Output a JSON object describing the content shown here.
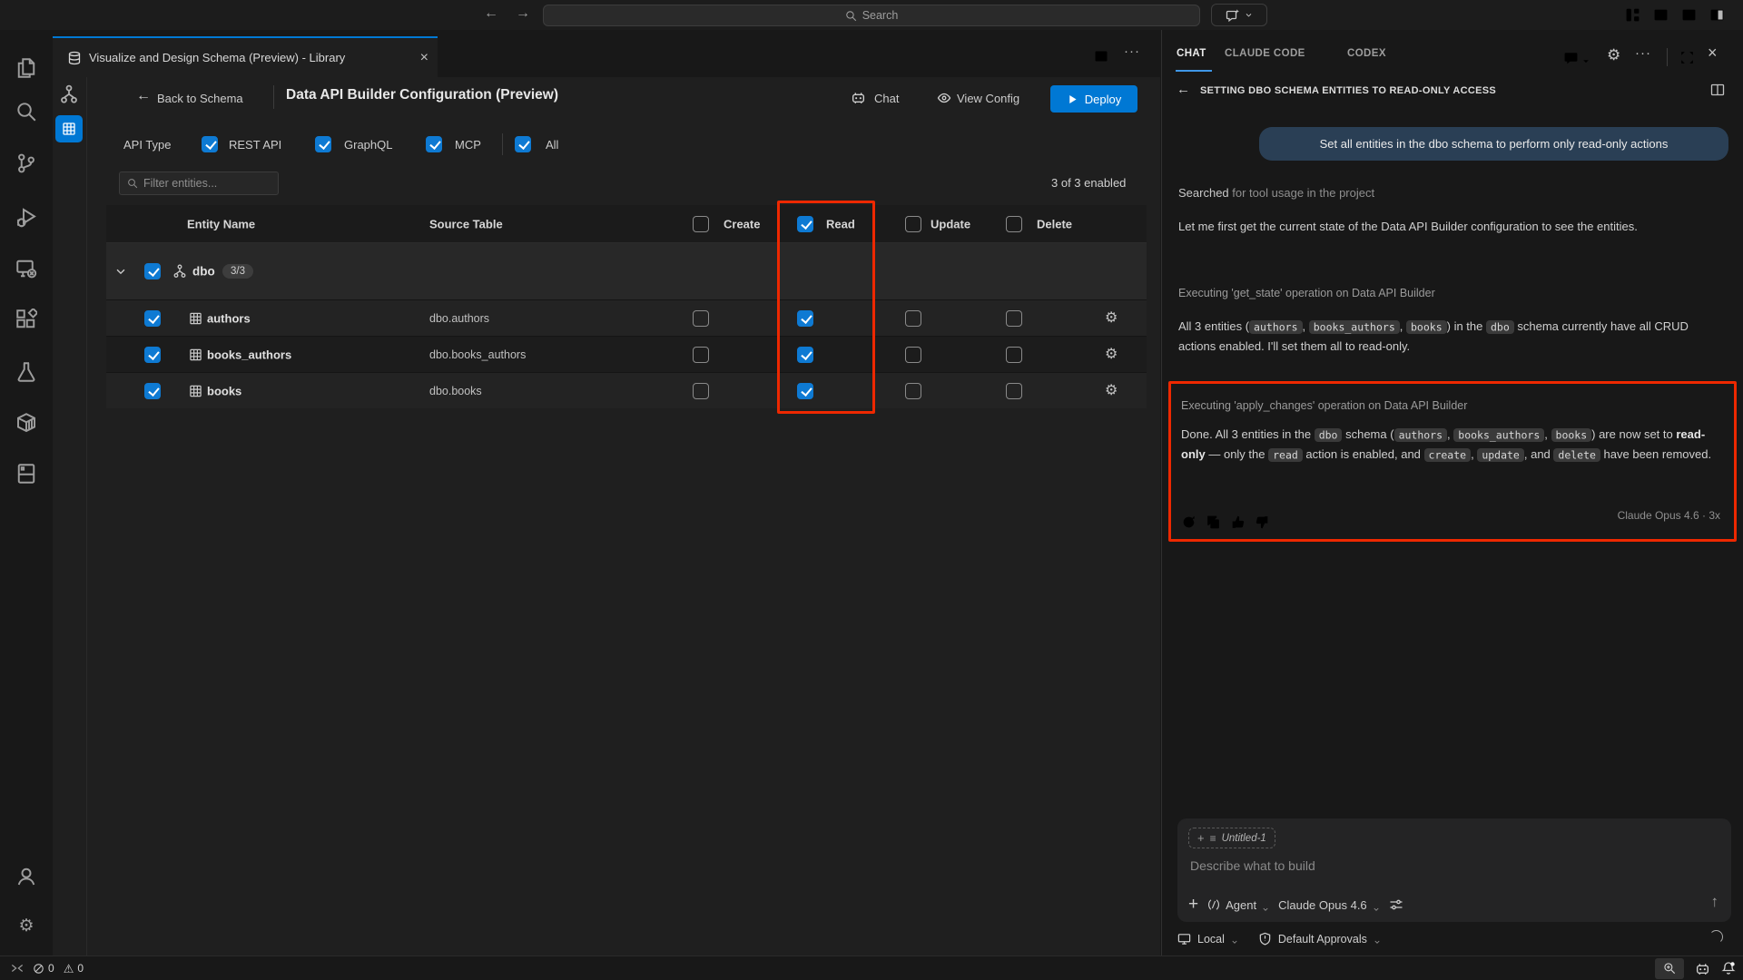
{
  "titlebar": {
    "search_placeholder": "Search"
  },
  "activity_bar": {
    "items": [
      "explorer",
      "search",
      "source-control",
      "run-debug",
      "remote-explorer",
      "extensions",
      "testing",
      "containers",
      "notebooks"
    ],
    "bottom": [
      "account",
      "settings"
    ]
  },
  "editor": {
    "tab_title": "Visualize and Design Schema (Preview) - Library",
    "header": {
      "back_label": "Back to Schema",
      "title": "Data API Builder Configuration (Preview)",
      "chat_label": "Chat",
      "view_config_label": "View Config",
      "deploy_label": "Deploy"
    },
    "api_type": {
      "label": "API Type",
      "options": [
        {
          "label": "REST API",
          "checked": true
        },
        {
          "label": "GraphQL",
          "checked": true
        },
        {
          "label": "MCP",
          "checked": true
        },
        {
          "label": "All",
          "checked": true
        }
      ]
    },
    "filter": {
      "placeholder": "Filter entities...",
      "status": "3 of 3 enabled"
    },
    "table": {
      "columns": {
        "entity": "Entity Name",
        "source": "Source Table",
        "create": "Create",
        "read": "Read",
        "update": "Update",
        "delete": "Delete"
      },
      "header_checks": {
        "create": false,
        "read": true,
        "update": false,
        "delete": false
      },
      "group": {
        "name": "dbo",
        "count": "3/3",
        "checked": true
      },
      "rows": [
        {
          "name": "authors",
          "source": "dbo.authors",
          "selected": true,
          "create": false,
          "read": true,
          "update": false,
          "delete": false
        },
        {
          "name": "books_authors",
          "source": "dbo.books_authors",
          "selected": true,
          "create": false,
          "read": true,
          "update": false,
          "delete": false
        },
        {
          "name": "books",
          "source": "dbo.books",
          "selected": true,
          "create": false,
          "read": true,
          "update": false,
          "delete": false
        }
      ]
    }
  },
  "chat": {
    "tabs": [
      "CHAT",
      "CLAUDE CODE",
      "CODEX"
    ],
    "thread_title": "SETTING DBO SCHEMA ENTITIES TO READ-ONLY ACCESS",
    "user_message": "Set all entities in the dbo schema to perform only read-only actions",
    "searched": {
      "strong": "Searched",
      "rest": " for tool usage in the project"
    },
    "para1": "Let me first get the current state of the Data API Builder configuration to see the entities.",
    "exec1": "Executing 'get_state' operation on Data API Builder",
    "para2": [
      {
        "text": "All 3 entities ("
      },
      {
        "code": "authors"
      },
      {
        "text": ", "
      },
      {
        "code": "books_authors"
      },
      {
        "text": ", "
      },
      {
        "code": "books"
      },
      {
        "text": ") in the "
      },
      {
        "code": "dbo"
      },
      {
        "text": " schema currently have all CRUD actions enabled. I'll set them all to read-only."
      }
    ],
    "exec2": "Executing 'apply_changes' operation on Data API Builder",
    "para3": [
      {
        "text": "Done. All 3 entities in the "
      },
      {
        "code": "dbo"
      },
      {
        "text": " schema ("
      },
      {
        "code": "authors"
      },
      {
        "text": ", "
      },
      {
        "code": "books_authors"
      },
      {
        "text": ", "
      },
      {
        "code": "books"
      },
      {
        "text": ") are now set to "
      },
      {
        "bold": "read-only"
      },
      {
        "text": " — only the "
      },
      {
        "code": "read"
      },
      {
        "text": " action is enabled, and "
      },
      {
        "code": "create"
      },
      {
        "text": ", "
      },
      {
        "code": "update"
      },
      {
        "text": ", and "
      },
      {
        "code": "delete"
      },
      {
        "text": " have been removed."
      }
    ],
    "response_meta": "Claude Opus 4.6 · 3x",
    "input": {
      "context_chip": "Untitled-1",
      "placeholder": "Describe what to build",
      "mode": "Agent",
      "model": "Claude Opus 4.6"
    },
    "footer": {
      "target": "Local",
      "approvals": "Default Approvals"
    }
  },
  "statusbar": {
    "errors": "0",
    "warnings": "0"
  },
  "colors": {
    "accent": "#0078d4",
    "annotation": "#ee2800",
    "checkbox": "#0e7ad3",
    "user_bubble": "#2a3f55"
  }
}
